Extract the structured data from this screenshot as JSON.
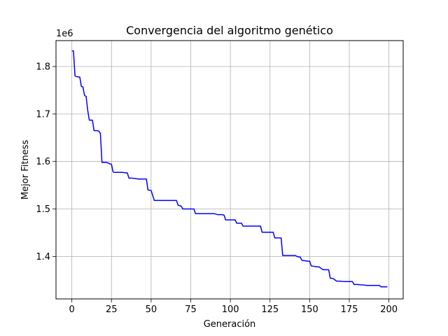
{
  "chart_data": {
    "type": "line",
    "title": "Convergencia del algoritmo genético",
    "xlabel": "Generación",
    "ylabel": "Mejor Fitness",
    "y_multiplier_label": "1e6",
    "xlim": [
      -10,
      209
    ],
    "ylim": [
      1.3106,
      1.8546
    ],
    "x_ticks": [
      0,
      25,
      50,
      75,
      100,
      125,
      150,
      175,
      200
    ],
    "x_tick_labels": [
      "0",
      "25",
      "50",
      "75",
      "100",
      "125",
      "150",
      "175",
      "200"
    ],
    "y_ticks": [
      1.4,
      1.5,
      1.6,
      1.7,
      1.8
    ],
    "y_tick_labels": [
      "1.4",
      "1.5",
      "1.6",
      "1.7",
      "1.8"
    ],
    "grid": true,
    "series": [
      {
        "color": "#0000ff",
        "x": [
          0,
          1,
          2,
          4,
          5,
          6,
          7,
          8,
          9,
          10,
          11,
          13,
          14,
          16,
          17,
          18,
          19,
          20,
          22,
          24,
          25,
          26,
          27,
          29,
          32,
          34,
          35,
          36,
          38,
          40,
          42,
          47,
          48,
          50,
          52,
          65,
          66,
          67,
          69,
          70,
          71,
          75,
          77,
          78,
          80,
          85,
          90,
          92,
          95,
          96,
          97,
          100,
          103,
          104,
          106,
          107,
          108,
          110,
          115,
          119,
          120,
          122,
          127,
          128,
          129,
          130,
          132,
          133,
          135,
          139,
          141,
          142,
          143,
          144,
          145,
          147,
          149,
          150,
          151,
          155,
          156,
          158,
          159,
          160,
          162,
          163,
          164,
          165,
          167,
          169,
          172,
          175,
          176,
          177,
          178,
          180,
          183,
          184,
          186,
          190,
          194,
          195,
          199
        ],
        "y": [
          1.833,
          1.833,
          1.78,
          1.778,
          1.778,
          1.758,
          1.757,
          1.739,
          1.737,
          1.708,
          1.687,
          1.687,
          1.665,
          1.665,
          1.664,
          1.659,
          1.598,
          1.598,
          1.598,
          1.595,
          1.594,
          1.578,
          1.577,
          1.577,
          1.577,
          1.576,
          1.576,
          1.565,
          1.565,
          1.564,
          1.563,
          1.563,
          1.54,
          1.539,
          1.518,
          1.518,
          1.518,
          1.508,
          1.506,
          1.5,
          1.5,
          1.5,
          1.5,
          1.49,
          1.49,
          1.49,
          1.49,
          1.488,
          1.488,
          1.487,
          1.477,
          1.477,
          1.477,
          1.47,
          1.47,
          1.47,
          1.464,
          1.464,
          1.464,
          1.464,
          1.451,
          1.451,
          1.451,
          1.439,
          1.439,
          1.439,
          1.439,
          1.402,
          1.402,
          1.402,
          1.402,
          1.4,
          1.399,
          1.399,
          1.392,
          1.391,
          1.39,
          1.39,
          1.38,
          1.378,
          1.378,
          1.373,
          1.372,
          1.372,
          1.372,
          1.354,
          1.354,
          1.353,
          1.348,
          1.348,
          1.347,
          1.347,
          1.347,
          1.347,
          1.341,
          1.341,
          1.34,
          1.34,
          1.339,
          1.339,
          1.339,
          1.336,
          1.336
        ]
      }
    ]
  }
}
